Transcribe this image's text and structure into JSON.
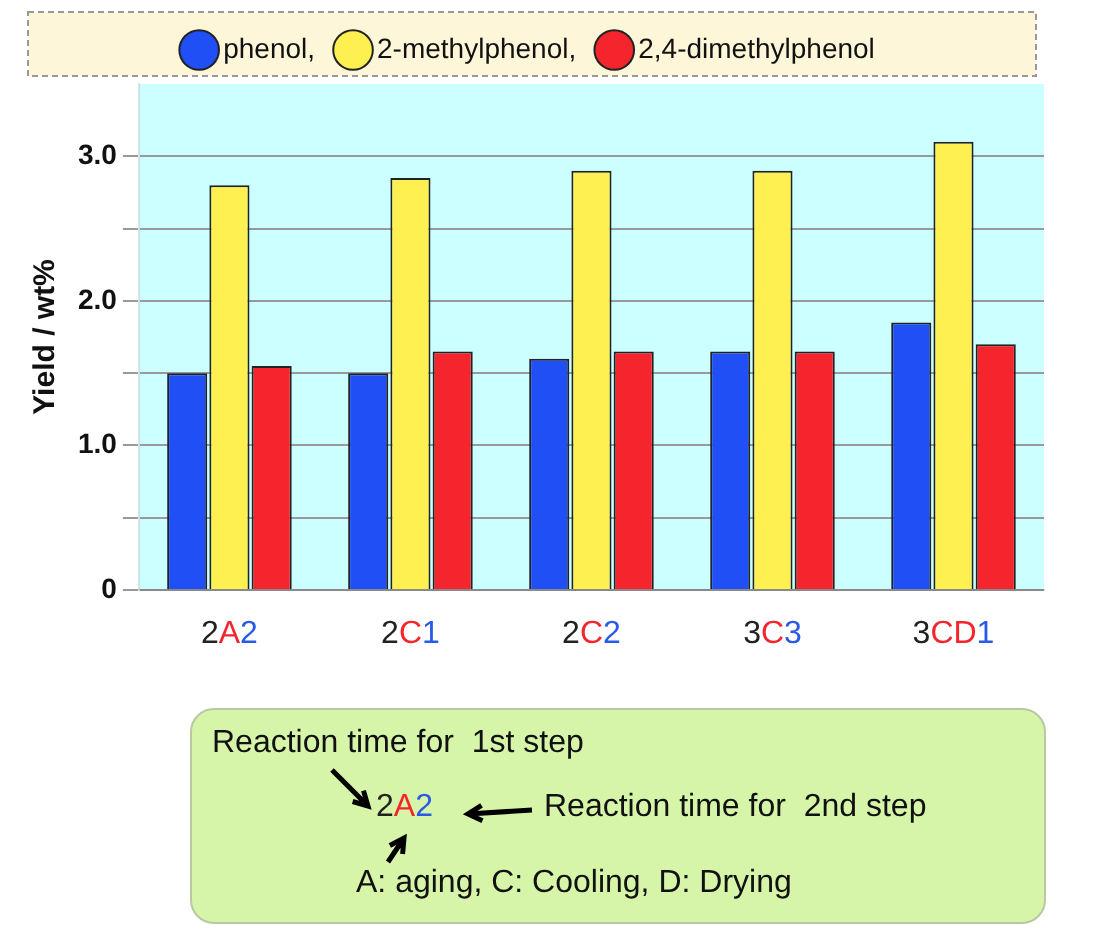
{
  "chart_data": {
    "type": "bar",
    "ylabel": "Yield / wt%",
    "categories": [
      "2A2",
      "2C1",
      "2C2",
      "3C3",
      "3CD1"
    ],
    "series": [
      {
        "name": "phenol,",
        "color": "#1f4ff5",
        "values": [
          1.5,
          1.5,
          1.6,
          1.65,
          1.85
        ]
      },
      {
        "name": "2-methylphenol,",
        "color": "#fdf050",
        "values": [
          2.8,
          2.85,
          2.9,
          2.9,
          3.1
        ]
      },
      {
        "name": "2,4-dimethylphenol",
        "color": "#f5252e",
        "values": [
          1.55,
          1.65,
          1.65,
          1.65,
          1.7
        ]
      }
    ],
    "ylim": [
      0,
      3.5
    ],
    "yticks": [
      0,
      {
        "value": 0.5,
        "label": null
      },
      {
        "value": 1,
        "label": "1.0"
      },
      {
        "value": 1.5,
        "label": null
      },
      {
        "value": 2,
        "label": "2.0"
      },
      {
        "value": 2.5,
        "label": null
      },
      {
        "value": 3,
        "label": "3.0"
      }
    ],
    "grid": "y",
    "legend": "top",
    "annotations": [
      "Reaction time for  1st step",
      "2A2",
      "Reaction time for  2nd step",
      "A: aging, C: Cooling, D: Drying"
    ]
  }
}
